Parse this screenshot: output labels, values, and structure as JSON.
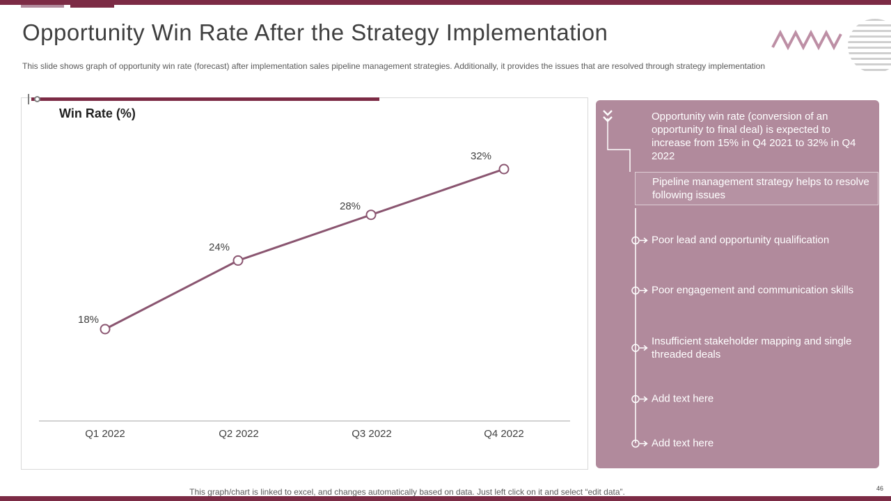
{
  "page": {
    "number": "46"
  },
  "header": {
    "title": "Opportunity Win Rate After the Strategy Implementation",
    "subtitle": "This slide shows graph of opportunity win rate (forecast) after implementation sales pipeline management strategies. Additionally, it provides the issues that are resolved through strategy implementation"
  },
  "chart_data": {
    "type": "line",
    "title": "Win Rate (%)",
    "categories": [
      "Q1 2022",
      "Q2 2022",
      "Q3 2022",
      "Q4 2022"
    ],
    "values": [
      18,
      24,
      28,
      32
    ],
    "labels": [
      "18%",
      "24%",
      "28%",
      "32%"
    ],
    "ylim": [
      10,
      40
    ],
    "grid": false,
    "legend": "none",
    "marker": "open-circle"
  },
  "panel": {
    "intro": "Opportunity win rate (conversion of an opportunity to final deal) is expected to increase from 15% in Q4 2021 to 32% in Q4 2022",
    "box": "Pipeline management strategy helps to resolve following issues",
    "issues": [
      {
        "text": "Poor lead and opportunity qualification"
      },
      {
        "text": "Poor engagement and communication skills"
      },
      {
        "text": "Insufficient stakeholder mapping and single threaded deals"
      },
      {
        "text": "Add text here"
      },
      {
        "text": "Add text here"
      }
    ]
  },
  "footer": {
    "note": "This graph/chart is linked to excel, and changes automatically based on data. Just left click on it and select “edit data”."
  },
  "colors": {
    "accent": "#7c2b45",
    "panel": "#b18a9c",
    "line": "#8a5570",
    "zigzag": "#bd8fa5",
    "stripes": "#cfcfcf"
  }
}
